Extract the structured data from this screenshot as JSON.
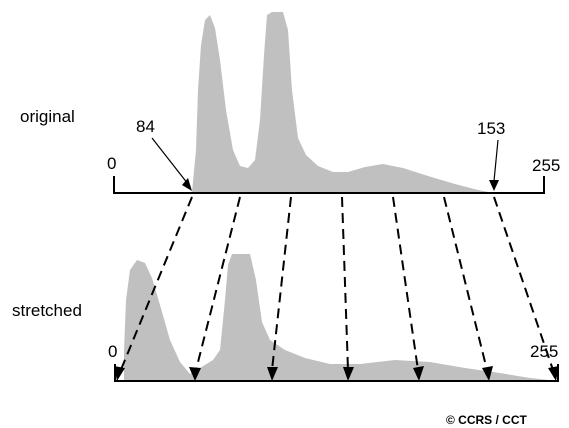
{
  "labels": {
    "original": "original",
    "stretched": "stretched"
  },
  "original_axis": {
    "min_label": "0",
    "max_label": "255",
    "stretch_low_label": "84",
    "stretch_high_label": "153"
  },
  "stretched_axis": {
    "min_label": "0",
    "max_label": "255"
  },
  "credit": "© CCRS / CCT",
  "colors": {
    "histogram_fill": "#c0c0c0",
    "line": "#000000",
    "background": "#ffffff"
  }
}
